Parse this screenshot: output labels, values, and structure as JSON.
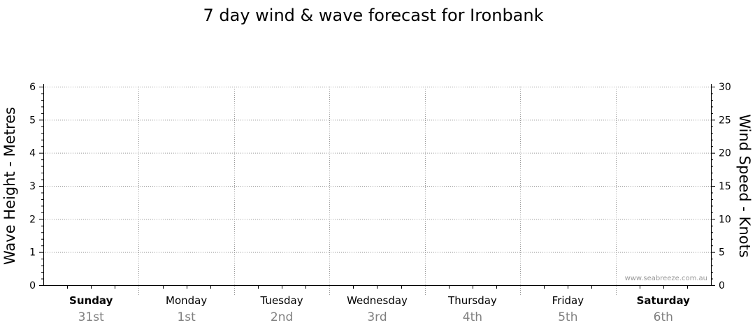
{
  "chart_data": {
    "type": "line",
    "title": "7 day wind & wave forecast for Ironbank",
    "ylabel_left": "Wave Height - Metres",
    "ylabel_right": "Wind Speed - Knots",
    "ylim_left": [
      0,
      6
    ],
    "ylim_right": [
      0,
      30
    ],
    "yticks_left": [
      "0",
      "1",
      "2",
      "3",
      "4",
      "5",
      "6"
    ],
    "yticks_right": [
      "0",
      "5",
      "10",
      "15",
      "20",
      "25",
      "30"
    ],
    "grid": true,
    "days": [
      {
        "name": "Sunday",
        "date": "31st",
        "weekend": true
      },
      {
        "name": "Monday",
        "date": "1st",
        "weekend": false
      },
      {
        "name": "Tuesday",
        "date": "2nd",
        "weekend": false
      },
      {
        "name": "Wednesday",
        "date": "3rd",
        "weekend": false
      },
      {
        "name": "Thursday",
        "date": "4th",
        "weekend": false
      },
      {
        "name": "Friday",
        "date": "5th",
        "weekend": false
      },
      {
        "name": "Saturday",
        "date": "6th",
        "weekend": true
      }
    ],
    "series": [],
    "watermark": "www.seabreeze.com.au"
  },
  "colors": {
    "axis": "#000000",
    "grid": "#999999",
    "date_text": "#808080",
    "watermark": "#999999"
  }
}
